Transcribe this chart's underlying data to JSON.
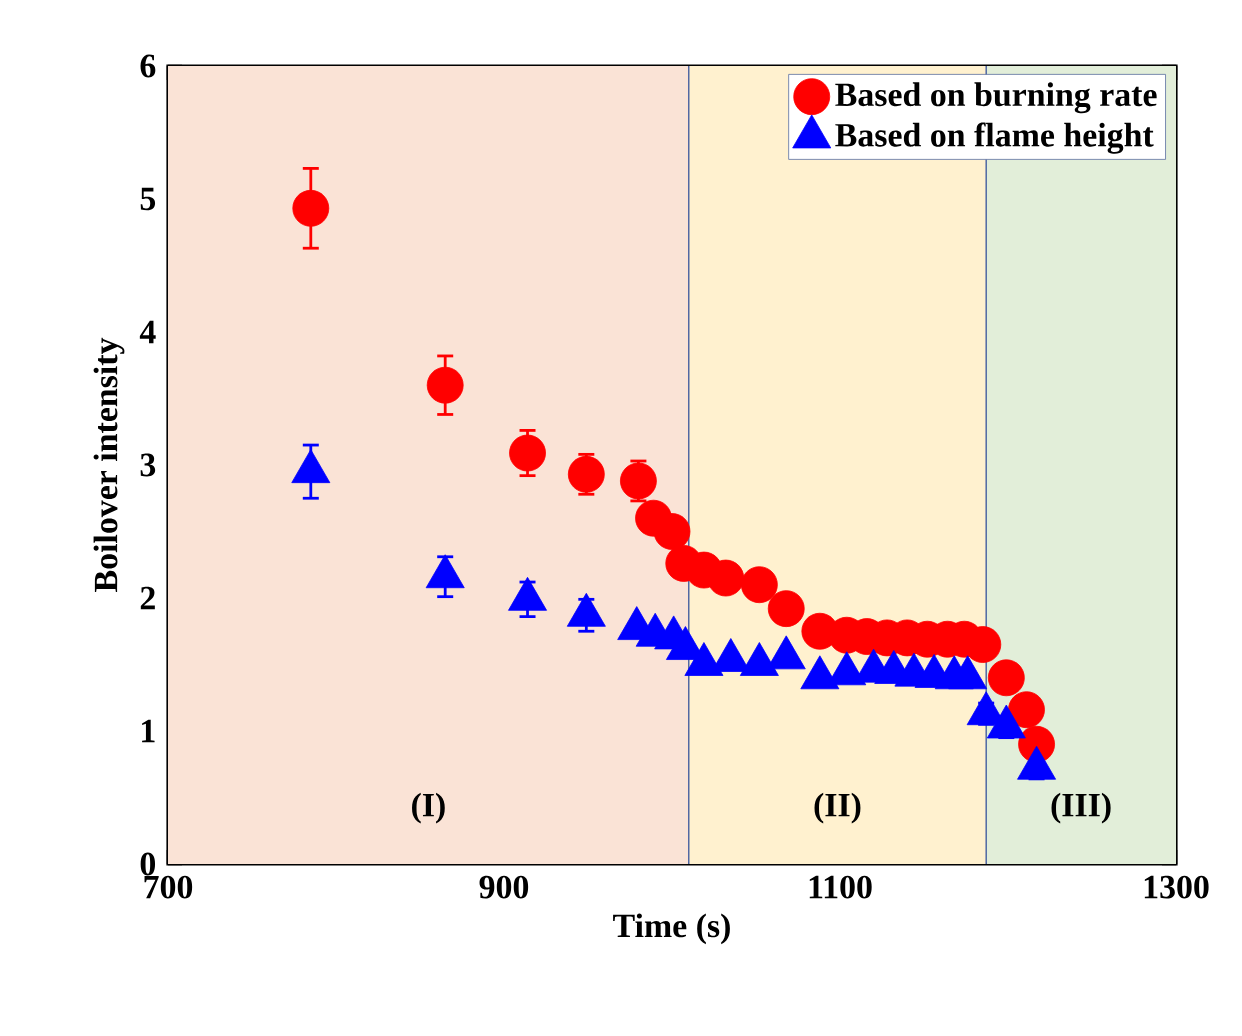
{
  "chart_data": {
    "type": "scatter",
    "xlabel": "Time (s)",
    "ylabel": "Boilover intensity",
    "xlim": [
      700,
      1300
    ],
    "xticks": [
      700,
      900,
      1100,
      1300
    ],
    "ylim": [
      0,
      6
    ],
    "yticks": [
      0,
      1,
      2,
      3,
      4,
      5,
      6
    ],
    "legend": "top right",
    "ref_lines": [
      {
        "axis": "x",
        "value": 1010,
        "color": "#284696"
      },
      {
        "axis": "x",
        "value": 1187,
        "color": "#284696"
      }
    ],
    "bands": [
      {
        "axis": "x",
        "from": 700,
        "to": 1010,
        "label": "(I)",
        "color": "#fae3d6"
      },
      {
        "axis": "x",
        "from": 1010,
        "to": 1187,
        "label": "(II)",
        "color": "#fff1cf"
      },
      {
        "axis": "x",
        "from": 1187,
        "to": 1300,
        "label": "(III)",
        "color": "#e2eed9"
      }
    ],
    "series": [
      {
        "name": "Based on burning rate",
        "color": "#ff0000",
        "marker": "circle",
        "x": [
          785,
          865,
          914,
          949,
          980,
          989,
          1000,
          1007,
          1019,
          1032,
          1052,
          1068,
          1088,
          1104,
          1116,
          1128,
          1140,
          1152,
          1164,
          1174,
          1185,
          1199,
          1211,
          1217
        ],
        "values": [
          4.93,
          3.6,
          3.09,
          2.93,
          2.88,
          2.6,
          2.5,
          2.26,
          2.21,
          2.15,
          2.1,
          1.92,
          1.75,
          1.72,
          1.71,
          1.7,
          1.7,
          1.69,
          1.69,
          1.69,
          1.65,
          1.4,
          1.16,
          0.9
        ],
        "errors": [
          0.3,
          0.22,
          0.17,
          0.15,
          0.15,
          null,
          null,
          null,
          null,
          null,
          null,
          null,
          null,
          null,
          null,
          null,
          null,
          null,
          null,
          null,
          0.08,
          0.08,
          0.08,
          0.08
        ]
      },
      {
        "name": "Based on flame height",
        "color": "#0000ff",
        "marker": "triangle",
        "x": [
          785,
          865,
          914,
          949,
          979,
          990,
          1001,
          1008,
          1019,
          1035,
          1052,
          1068,
          1088,
          1104,
          1120,
          1132,
          1144,
          1156,
          1168,
          1176,
          1187,
          1199,
          1217
        ],
        "values": [
          2.95,
          2.16,
          1.99,
          1.87,
          1.77,
          1.72,
          1.7,
          1.62,
          1.5,
          1.53,
          1.5,
          1.55,
          1.4,
          1.43,
          1.45,
          1.44,
          1.42,
          1.41,
          1.4,
          1.4,
          1.13,
          1.03,
          0.72
        ],
        "errors": [
          0.2,
          0.15,
          0.13,
          0.12,
          null,
          null,
          null,
          null,
          null,
          null,
          null,
          null,
          null,
          null,
          null,
          null,
          null,
          null,
          null,
          null,
          0.08,
          0.08,
          0.08
        ]
      }
    ]
  }
}
